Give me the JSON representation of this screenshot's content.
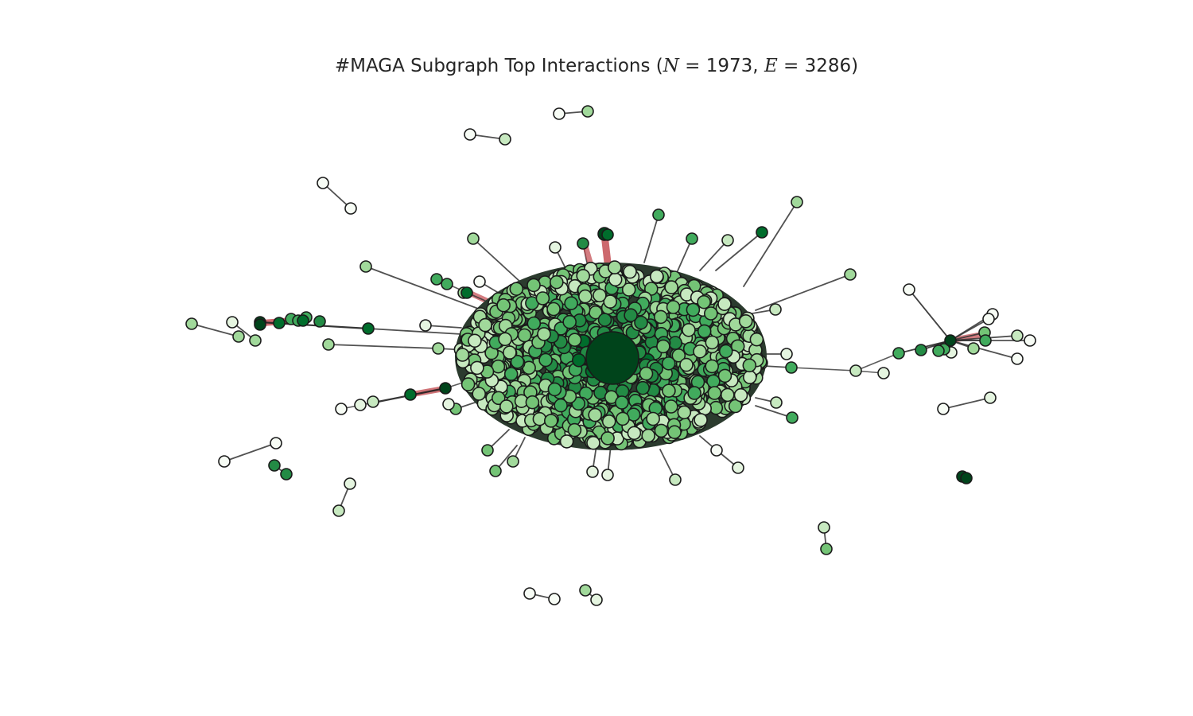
{
  "title": {
    "prefix": "#MAGA Subgraph Top Interactions (",
    "n_symbol": "N",
    "n_value": " = 1973, ",
    "e_symbol": "E",
    "e_value": " = 3286)",
    "suffix": ""
  },
  "graph": {
    "nodes": 1973,
    "edges": 3286,
    "colormap": "Greens",
    "colors": {
      "node_edge": "#1a1a1a",
      "edge": "#333333",
      "strong_edge": "#c0444a",
      "darkest_green": "#00441b",
      "lightest_green": "#f7fcf5"
    }
  }
}
